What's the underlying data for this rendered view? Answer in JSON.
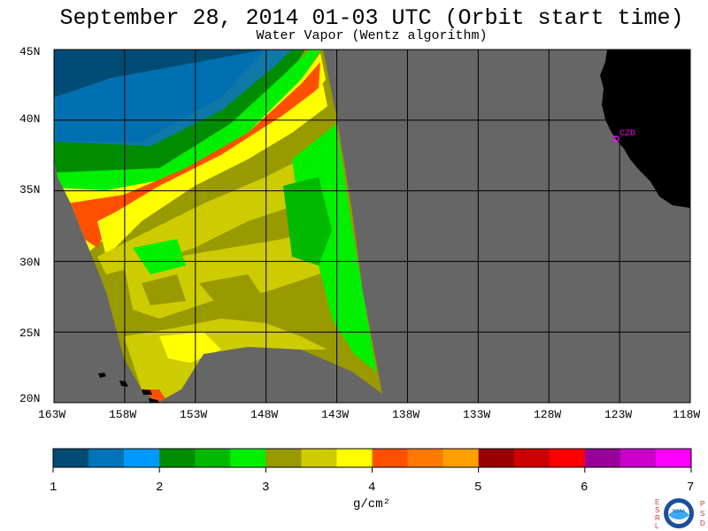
{
  "title": "September 28, 2014  01-03 UTC  (Orbit start time)",
  "subtitle": "Water Vapor (Wentz algorithm)",
  "map": {
    "lat_labels": [
      "45N",
      "40N",
      "35N",
      "30N",
      "25N",
      "20N"
    ],
    "lon_labels": [
      "163W",
      "158W",
      "153W",
      "148W",
      "143W",
      "138W",
      "133W",
      "128W",
      "123W",
      "118W"
    ],
    "station_label": "CZD",
    "colors": {
      "no_data": "#666666",
      "land": "#000000",
      "grid": "#000000",
      "station": "#ff00ff"
    }
  },
  "colorbar": {
    "unit": "g/cm²",
    "tick_labels": [
      "1",
      "2",
      "3",
      "4",
      "5",
      "6",
      "7"
    ],
    "colors": [
      "#004c74",
      "#0074b8",
      "#0099ff",
      "#008c00",
      "#00b900",
      "#00f000",
      "#999900",
      "#cccc00",
      "#ffff00",
      "#ff5000",
      "#ff7a00",
      "#ffa000",
      "#990000",
      "#cc0000",
      "#ff0000",
      "#990099",
      "#cc00cc",
      "#ff00ff"
    ]
  },
  "logo": {
    "left_text": "ESRL",
    "right_text": "PSD",
    "center_text": "NOAA"
  }
}
